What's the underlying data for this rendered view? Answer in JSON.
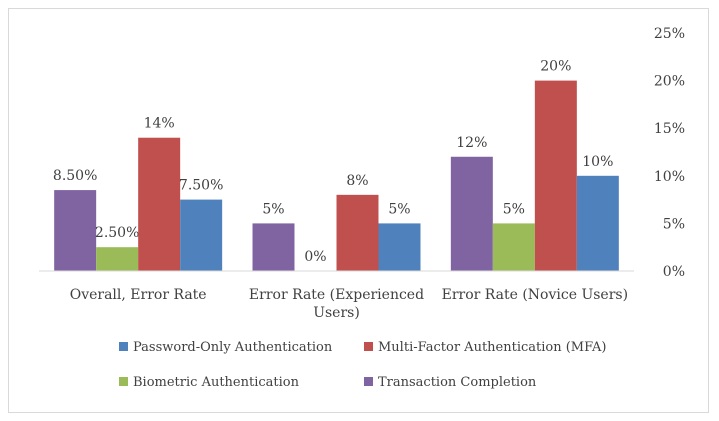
{
  "chart_data": {
    "type": "bar",
    "categories": [
      [
        "Overall, Error Rate"
      ],
      [
        "Error Rate (Experienced",
        "Users)"
      ],
      [
        "Error Rate (Novice Users)"
      ]
    ],
    "series": [
      {
        "name": "Transaction Completion",
        "color": "#8064a2",
        "values": [
          8.5,
          5,
          12
        ],
        "labels": [
          "8.50%",
          "5%",
          "12%"
        ]
      },
      {
        "name": "Biometric Authentication",
        "color": "#9bbb59",
        "values": [
          2.5,
          0,
          5
        ],
        "labels": [
          "2.50%",
          "0%",
          "5%"
        ]
      },
      {
        "name": "Multi-Factor Authentication (MFA)",
        "color": "#c0504d",
        "values": [
          14,
          8,
          20
        ],
        "labels": [
          "14%",
          "8%",
          "20%"
        ]
      },
      {
        "name": "Password-Only Authentication",
        "color": "#4f81bd",
        "values": [
          7.5,
          5,
          10
        ],
        "labels": [
          "7.50%",
          "5%",
          "10%"
        ]
      }
    ],
    "ylim": [
      0,
      25
    ],
    "yticks": [
      {
        "value": 0,
        "label": "0%"
      },
      {
        "value": 5,
        "label": "5%"
      },
      {
        "value": 10,
        "label": "10%"
      },
      {
        "value": 15,
        "label": "15%"
      },
      {
        "value": 20,
        "label": "20%"
      },
      {
        "value": 25,
        "label": "25%"
      }
    ],
    "y_axis_side": "right",
    "grid": false,
    "legend_position": "bottom",
    "legend": [
      [
        "Password-Only Authentication",
        "Multi-Factor Authentication (MFA)"
      ],
      [
        "Biometric Authentication",
        "Transaction Completion"
      ]
    ],
    "title": "",
    "xlabel": "",
    "ylabel": ""
  }
}
